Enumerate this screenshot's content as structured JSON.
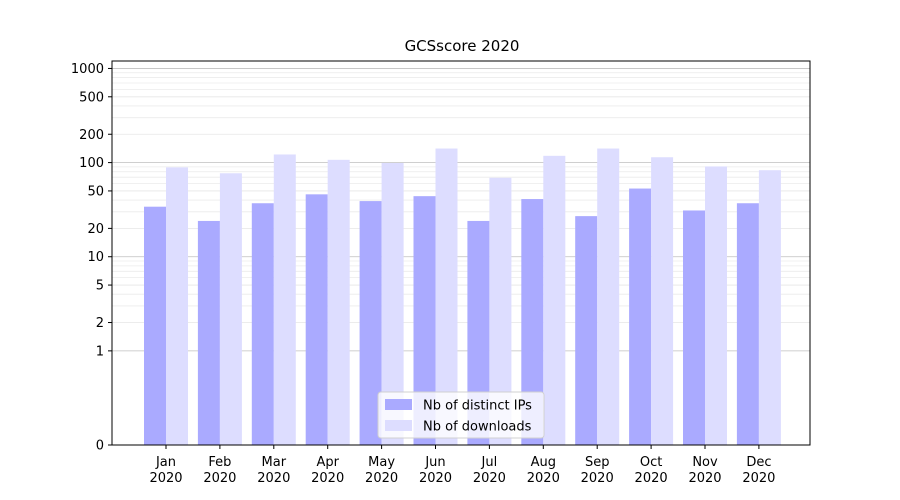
{
  "chart_data": {
    "type": "bar",
    "title": "GCSscore 2020",
    "categories": [
      "Jan\n2020",
      "Feb\n2020",
      "Mar\n2020",
      "Apr\n2020",
      "May\n2020",
      "Jun\n2020",
      "Jul\n2020",
      "Aug\n2020",
      "Sep\n2020",
      "Oct\n2020",
      "Nov\n2020",
      "Dec\n2020"
    ],
    "series": [
      {
        "name": "Nb of distinct IPs",
        "color": "#aaaaff",
        "values": [
          34,
          24,
          37,
          46,
          39,
          44,
          24,
          41,
          27,
          53,
          31,
          37
        ]
      },
      {
        "name": "Nb of downloads",
        "color": "#ddddff",
        "values": [
          89,
          77,
          122,
          107,
          99,
          141,
          69,
          118,
          141,
          114,
          91,
          83
        ]
      }
    ],
    "yscale": "symlog",
    "ylim": [
      0,
      1200
    ],
    "yticks": [
      0,
      1,
      2,
      5,
      10,
      20,
      50,
      100,
      200,
      500,
      1000
    ],
    "grid": true,
    "legend_position": "lower-center"
  }
}
